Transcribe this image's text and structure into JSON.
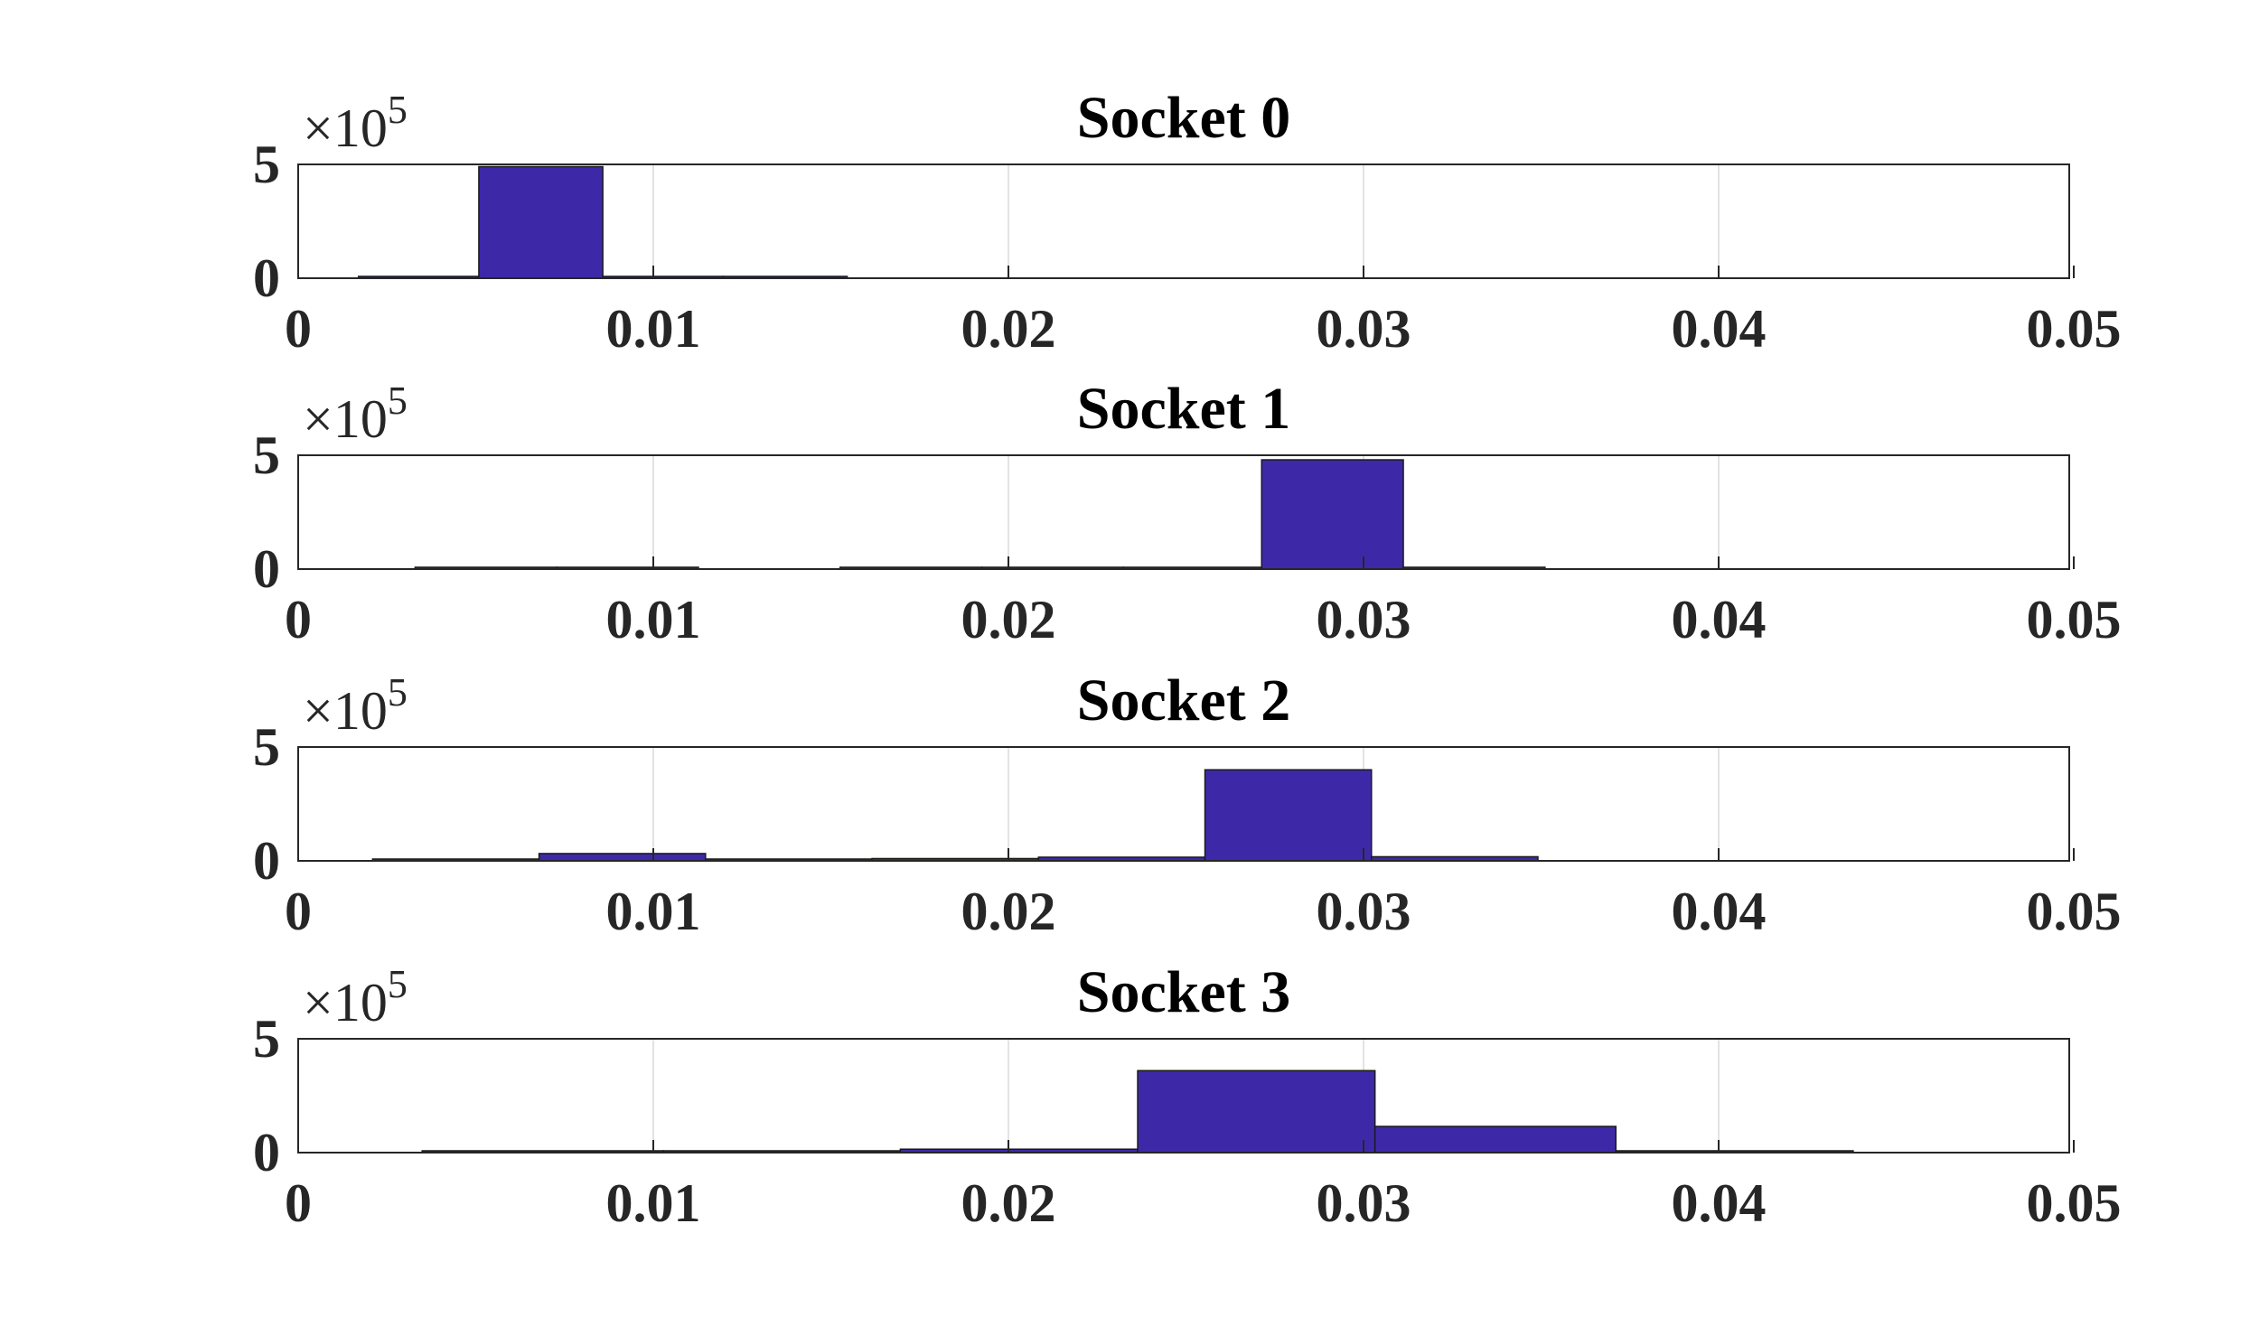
{
  "chart_data": [
    {
      "type": "bar",
      "title": "Socket 0",
      "xlim": [
        0,
        0.05
      ],
      "ylim": [
        0,
        500000
      ],
      "x_ticks": [
        "0",
        "0.01",
        "0.02",
        "0.03",
        "0.04",
        "0.05"
      ],
      "y_ticks": [
        "0",
        "5"
      ],
      "y_exponent": "×10",
      "y_exponent_power": "5",
      "grid": "x",
      "bins": [
        {
          "x0": 0.0017,
          "x1": 0.0051,
          "value": 1500
        },
        {
          "x0": 0.0051,
          "x1": 0.0086,
          "value": 490000
        },
        {
          "x0": 0.0086,
          "x1": 0.012,
          "value": 1000
        },
        {
          "x0": 0.012,
          "x1": 0.0155,
          "value": 400
        }
      ]
    },
    {
      "type": "bar",
      "title": "Socket 1",
      "xlim": [
        0,
        0.05
      ],
      "ylim": [
        0,
        500000
      ],
      "x_ticks": [
        "0",
        "0.01",
        "0.02",
        "0.03",
        "0.04",
        "0.05"
      ],
      "y_ticks": [
        "0",
        "5"
      ],
      "y_exponent": "×10",
      "y_exponent_power": "5",
      "grid": "x",
      "bins": [
        {
          "x0": 0.0033,
          "x1": 0.0073,
          "value": 300
        },
        {
          "x0": 0.0073,
          "x1": 0.0113,
          "value": 300
        },
        {
          "x0": 0.0153,
          "x1": 0.0193,
          "value": 500
        },
        {
          "x0": 0.0193,
          "x1": 0.0233,
          "value": 800
        },
        {
          "x0": 0.0233,
          "x1": 0.0272,
          "value": 1500
        },
        {
          "x0": 0.0272,
          "x1": 0.0312,
          "value": 480000
        },
        {
          "x0": 0.0312,
          "x1": 0.0352,
          "value": 3000
        }
      ]
    },
    {
      "type": "bar",
      "title": "Socket 2",
      "xlim": [
        0,
        0.05
      ],
      "ylim": [
        0,
        500000
      ],
      "x_ticks": [
        "0",
        "0.01",
        "0.02",
        "0.03",
        "0.04",
        "0.05"
      ],
      "y_ticks": [
        "0",
        "5"
      ],
      "y_exponent": "×10",
      "y_exponent_power": "5",
      "grid": "x",
      "bins": [
        {
          "x0": 0.0021,
          "x1": 0.0068,
          "value": 500
        },
        {
          "x0": 0.0068,
          "x1": 0.0115,
          "value": 32000
        },
        {
          "x0": 0.0115,
          "x1": 0.0162,
          "value": 1000
        },
        {
          "x0": 0.0162,
          "x1": 0.0209,
          "value": 10000
        },
        {
          "x0": 0.0209,
          "x1": 0.0256,
          "value": 16000
        },
        {
          "x0": 0.0256,
          "x1": 0.0303,
          "value": 400000
        },
        {
          "x0": 0.0303,
          "x1": 0.035,
          "value": 18000
        }
      ]
    },
    {
      "type": "bar",
      "title": "Socket 3",
      "xlim": [
        0,
        0.05
      ],
      "ylim": [
        0,
        500000
      ],
      "x_ticks": [
        "0",
        "0.01",
        "0.02",
        "0.03",
        "0.04",
        "0.05"
      ],
      "y_ticks": [
        "0",
        "5"
      ],
      "y_exponent": "×10",
      "y_exponent_power": "5",
      "grid": "x",
      "bins": [
        {
          "x0": 0.0035,
          "x1": 0.0103,
          "value": 500
        },
        {
          "x0": 0.0103,
          "x1": 0.017,
          "value": 500
        },
        {
          "x0": 0.017,
          "x1": 0.0237,
          "value": 15000
        },
        {
          "x0": 0.0237,
          "x1": 0.0304,
          "value": 360000
        },
        {
          "x0": 0.0304,
          "x1": 0.0372,
          "value": 115000
        },
        {
          "x0": 0.0372,
          "x1": 0.0439,
          "value": 1000
        }
      ]
    }
  ],
  "colors": {
    "bar_fill": "#3d29a8",
    "bar_edge": "#1a1a1a",
    "axis": "#262626",
    "grid": "#e3e3e3",
    "background": "#ffffff"
  }
}
